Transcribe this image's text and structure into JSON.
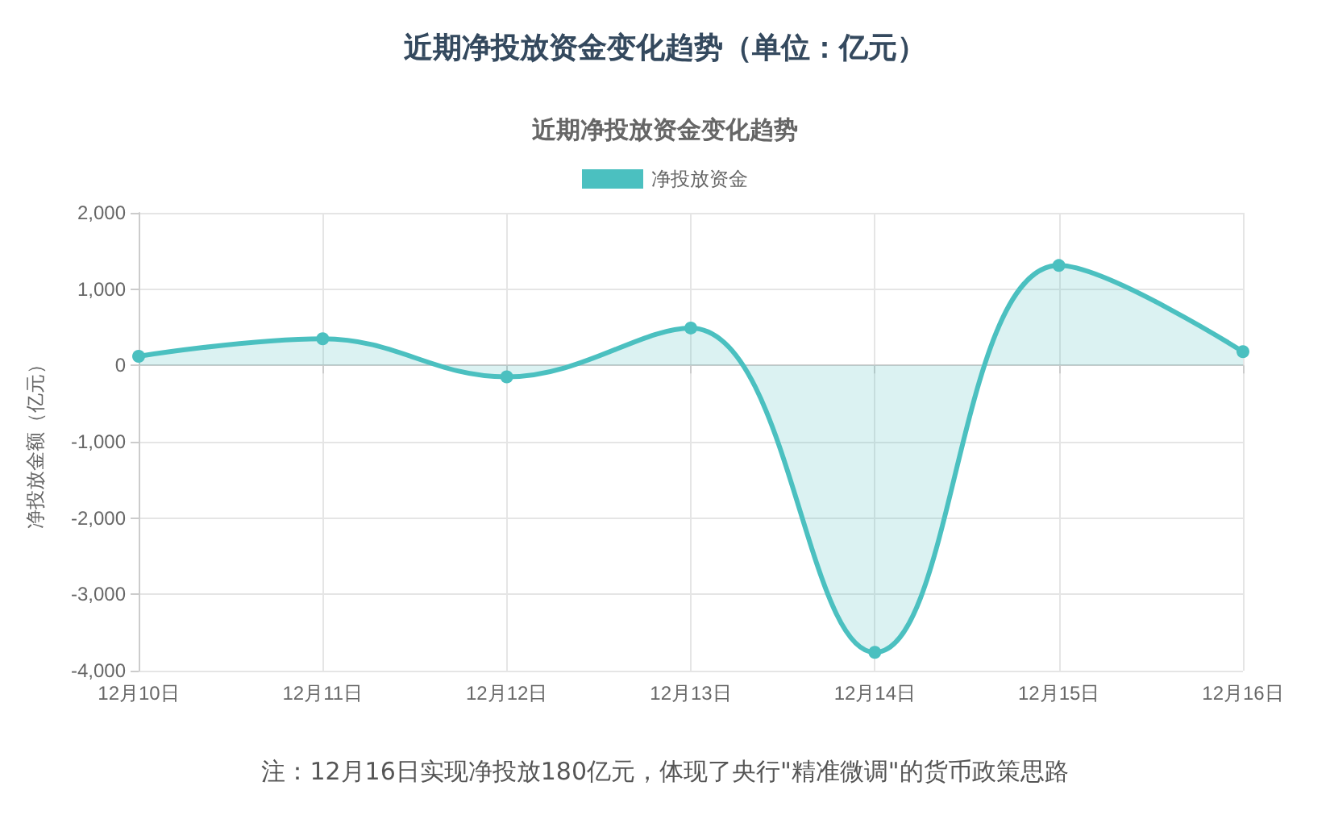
{
  "chart_data": {
    "type": "area",
    "title": "近期净投放资金变化趋势（单位：亿元）",
    "subtitle": "近期净投放资金变化趋势",
    "ylabel": "净投放金额（亿元）",
    "categories": [
      "12月10日",
      "12月11日",
      "12月12日",
      "12月13日",
      "12月14日",
      "12月15日",
      "12月16日"
    ],
    "series": [
      {
        "name": "净投放资金",
        "color": "#4bc0c0",
        "values": [
          120,
          350,
          -150,
          490,
          -3760,
          1310,
          180
        ]
      }
    ],
    "ylim": [
      -4000,
      2000
    ],
    "yticks": [
      {
        "value": -4000,
        "label": "-4,000"
      },
      {
        "value": -3000,
        "label": "-3,000"
      },
      {
        "value": -2000,
        "label": "-2,000"
      },
      {
        "value": -1000,
        "label": "-1,000"
      },
      0,
      {
        "value": 1000,
        "label": "1,000"
      },
      {
        "value": 2000,
        "label": "2,000"
      }
    ],
    "grid": true,
    "legend": "top",
    "marker": "circle",
    "line_style": "solid",
    "annotations": [
      "注：12月16日实现净投放180亿元，体现了央行\"精准微调\"的货币政策思路"
    ]
  }
}
